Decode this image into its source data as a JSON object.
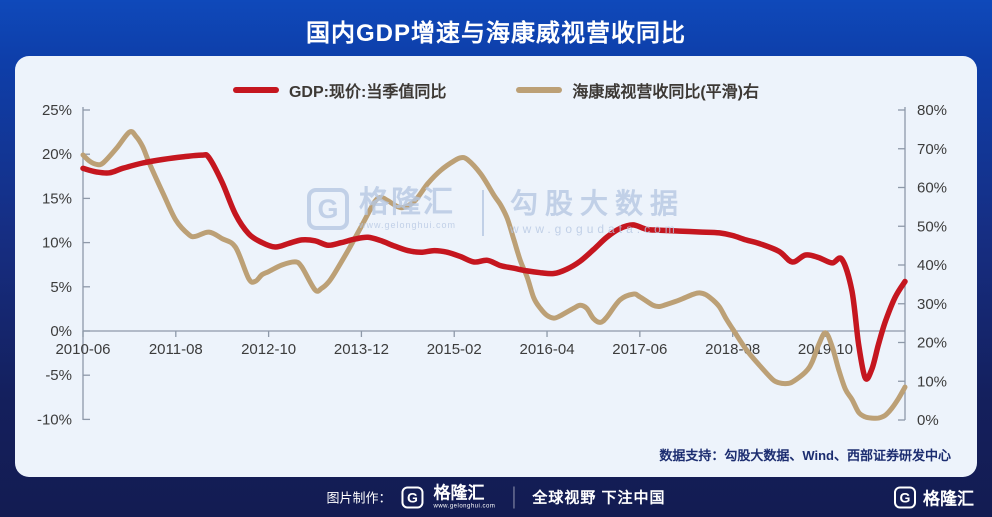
{
  "banner": {
    "title": "国内GDP增速与海康威视营收同比"
  },
  "legend": [
    {
      "label": "GDP:现价:当季值同比",
      "color": "#c5161f"
    },
    {
      "label": "海康威视营收同比(平滑)右",
      "color": "#bca076"
    }
  ],
  "watermark": {
    "g_glyph": "G",
    "brand": "格隆汇",
    "brand_url": "www.gelonghui.com",
    "right_text": "勾股大数据",
    "right_url": "www.gogudata.com"
  },
  "source_note": "数据支持：勾股大数据、Wind、西部证券研发中心",
  "footer": {
    "made_by": "图片制作：",
    "g_glyph": "G",
    "brand": "格隆汇",
    "brand_url": "www.gelonghui.com",
    "slogan": "全球视野 下注中国",
    "right_g_glyph": "G",
    "right_brand": "格隆汇"
  },
  "chart_data": {
    "type": "line",
    "title": "国内GDP增速与海康威视营收同比",
    "x_unit": "months since 2010-06",
    "x_max": 124,
    "grid": false,
    "legend_position": "top-center",
    "x_ticks": [
      {
        "label": "2010-06",
        "m": 0
      },
      {
        "label": "2011-08",
        "m": 14
      },
      {
        "label": "2012-10",
        "m": 28
      },
      {
        "label": "2013-12",
        "m": 42
      },
      {
        "label": "2015-02",
        "m": 56
      },
      {
        "label": "2016-04",
        "m": 70
      },
      {
        "label": "2017-06",
        "m": 84
      },
      {
        "label": "2018-08",
        "m": 98
      },
      {
        "label": "2019-10",
        "m": 112
      }
    ],
    "left_axis": {
      "min": -10,
      "max": 25,
      "tick_values": [
        25,
        20,
        15,
        10,
        5,
        0,
        -5,
        -10
      ],
      "tick_labels": [
        "25%",
        "20%",
        "15%",
        "10%",
        "5%",
        "0%",
        "-5%",
        "-10%"
      ]
    },
    "right_axis": {
      "min": 0,
      "max": 80,
      "tick_values": [
        80,
        70,
        60,
        50,
        40,
        30,
        20,
        10,
        0
      ],
      "tick_labels": [
        "80%",
        "70%",
        "60%",
        "50%",
        "40%",
        "30%",
        "20%",
        "10%",
        "0%"
      ]
    },
    "series": [
      {
        "name": "海康威视营收同比(平滑)右",
        "axis": "right",
        "color": "#bca076",
        "width": 5,
        "points": [
          [
            0,
            68.4
          ],
          [
            1,
            66.8
          ],
          [
            2,
            66.0
          ],
          [
            3,
            66.3
          ],
          [
            5,
            70.0
          ],
          [
            7,
            74.3
          ],
          [
            8,
            73.2
          ],
          [
            9,
            70.5
          ],
          [
            10,
            66.3
          ],
          [
            12,
            58.8
          ],
          [
            14,
            51.6
          ],
          [
            16,
            47.8
          ],
          [
            17,
            47.4
          ],
          [
            19,
            48.5
          ],
          [
            21,
            46.8
          ],
          [
            23,
            44.6
          ],
          [
            25,
            36.5
          ],
          [
            26,
            35.8
          ],
          [
            27,
            37.5
          ],
          [
            28,
            38.3
          ],
          [
            30,
            40.0
          ],
          [
            32,
            40.8
          ],
          [
            33,
            39.5
          ],
          [
            35,
            33.6
          ],
          [
            36,
            34.0
          ],
          [
            37,
            35.5
          ],
          [
            38,
            38.0
          ],
          [
            40,
            43.8
          ],
          [
            42,
            50.0
          ],
          [
            44,
            56.3
          ],
          [
            45,
            57.4
          ],
          [
            46,
            56.6
          ],
          [
            48,
            54.8
          ],
          [
            50,
            56.5
          ],
          [
            52,
            61.0
          ],
          [
            54,
            64.5
          ],
          [
            56,
            66.9
          ],
          [
            57,
            67.7
          ],
          [
            58,
            67.2
          ],
          [
            60,
            63.5
          ],
          [
            62,
            58.0
          ],
          [
            63,
            55.5
          ],
          [
            64,
            52.0
          ],
          [
            65,
            46.5
          ],
          [
            66,
            41.0
          ],
          [
            67,
            36.9
          ],
          [
            68,
            31.5
          ],
          [
            69,
            28.8
          ],
          [
            70,
            27.0
          ],
          [
            71,
            26.3
          ],
          [
            72,
            26.9
          ],
          [
            74,
            28.8
          ],
          [
            75,
            29.6
          ],
          [
            76,
            28.8
          ],
          [
            77,
            26.2
          ],
          [
            78,
            25.2
          ],
          [
            79,
            26.5
          ],
          [
            81,
            31.0
          ],
          [
            83,
            32.5
          ],
          [
            84,
            31.8
          ],
          [
            86,
            29.6
          ],
          [
            87,
            29.3
          ],
          [
            88,
            29.8
          ],
          [
            90,
            31.0
          ],
          [
            92,
            32.4
          ],
          [
            93,
            32.8
          ],
          [
            94,
            32.3
          ],
          [
            95,
            31.0
          ],
          [
            96,
            29.2
          ],
          [
            97,
            26.2
          ],
          [
            98,
            23.5
          ],
          [
            100,
            18.3
          ],
          [
            102,
            14.2
          ],
          [
            104,
            10.5
          ],
          [
            105,
            9.6
          ],
          [
            106,
            9.4
          ],
          [
            107,
            9.8
          ],
          [
            109,
            12.4
          ],
          [
            110,
            15.0
          ],
          [
            111,
            19.5
          ],
          [
            112,
            22.5
          ],
          [
            113,
            19.0
          ],
          [
            114,
            13.0
          ],
          [
            115,
            8.0
          ],
          [
            116,
            5.3
          ],
          [
            117,
            2.0
          ],
          [
            118,
            0.8
          ],
          [
            119,
            0.5
          ],
          [
            120,
            0.5
          ],
          [
            121,
            1.2
          ],
          [
            122,
            3.0
          ],
          [
            123,
            5.5
          ],
          [
            124,
            8.5
          ]
        ]
      },
      {
        "name": "GDP:现价:当季值同比",
        "axis": "left",
        "color": "#c5161f",
        "width": 5.5,
        "points": [
          [
            0,
            18.4
          ],
          [
            2,
            18.0
          ],
          [
            4,
            17.9
          ],
          [
            6,
            18.4
          ],
          [
            9,
            19.0
          ],
          [
            12,
            19.4
          ],
          [
            15,
            19.7
          ],
          [
            18,
            19.9
          ],
          [
            19,
            19.6
          ],
          [
            21,
            16.8
          ],
          [
            23,
            13.2
          ],
          [
            25,
            11.0
          ],
          [
            27,
            10.0
          ],
          [
            29,
            9.5
          ],
          [
            31,
            9.9
          ],
          [
            33,
            10.3
          ],
          [
            35,
            10.2
          ],
          [
            37,
            9.7
          ],
          [
            39,
            10.0
          ],
          [
            41,
            10.4
          ],
          [
            43,
            10.6
          ],
          [
            45,
            10.2
          ],
          [
            47,
            9.6
          ],
          [
            49,
            9.1
          ],
          [
            51,
            8.9
          ],
          [
            53,
            9.1
          ],
          [
            55,
            8.9
          ],
          [
            57,
            8.4
          ],
          [
            59,
            7.8
          ],
          [
            61,
            8.0
          ],
          [
            63,
            7.4
          ],
          [
            65,
            7.1
          ],
          [
            67,
            6.8
          ],
          [
            69,
            6.6
          ],
          [
            71,
            6.5
          ],
          [
            73,
            7.0
          ],
          [
            75,
            7.9
          ],
          [
            77,
            9.2
          ],
          [
            79,
            10.6
          ],
          [
            81,
            11.6
          ],
          [
            83,
            12.0
          ],
          [
            85,
            11.5
          ],
          [
            87,
            11.4
          ],
          [
            90,
            11.3
          ],
          [
            93,
            11.2
          ],
          [
            96,
            11.1
          ],
          [
            98,
            10.8
          ],
          [
            100,
            10.3
          ],
          [
            102,
            9.9
          ],
          [
            105,
            9.0
          ],
          [
            107,
            7.8
          ],
          [
            109,
            8.6
          ],
          [
            111,
            8.3
          ],
          [
            113,
            7.7
          ],
          [
            114.5,
            8.1
          ],
          [
            116,
            4.5
          ],
          [
            117,
            -1.5
          ],
          [
            118,
            -5.3
          ],
          [
            119,
            -4.3
          ],
          [
            120,
            -1.5
          ],
          [
            121,
            1.0
          ],
          [
            122.5,
            3.8
          ],
          [
            124,
            5.6
          ]
        ]
      }
    ]
  }
}
